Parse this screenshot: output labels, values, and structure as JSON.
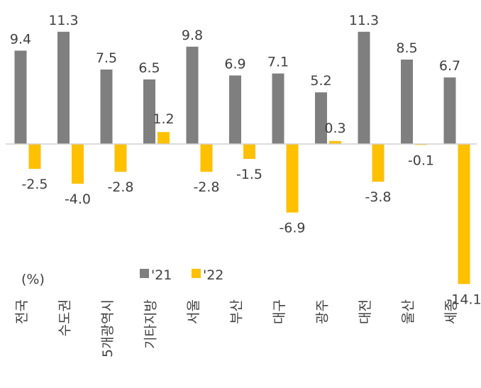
{
  "chart_data": {
    "type": "bar",
    "unit": "(%)",
    "categories": [
      "전국",
      "수도권",
      "5개광역시",
      "기타지방",
      "서울",
      "부산",
      "대구",
      "광주",
      "대전",
      "울산",
      "세종"
    ],
    "series": [
      {
        "name": "'21",
        "color": "#7f7f7f",
        "values": [
          9.4,
          11.3,
          7.5,
          6.5,
          9.8,
          6.9,
          7.1,
          5.2,
          11.3,
          8.5,
          6.7
        ]
      },
      {
        "name": "'22",
        "color": "#ffc000",
        "values": [
          -2.5,
          -4.0,
          -2.8,
          1.2,
          -2.8,
          -1.5,
          -6.9,
          0.3,
          -3.8,
          -0.1,
          -14.1
        ]
      }
    ],
    "value_labels": {
      "s21": [
        "9.4",
        "11.3",
        "7.5",
        "6.5",
        "9.8",
        "6.9",
        "7.1",
        "5.2",
        "11.3",
        "8.5",
        "6.7"
      ],
      "s22": [
        "-2.5",
        "-4.0",
        "-2.8",
        "1.2",
        "-2.8",
        "-1.5",
        "-6.9",
        "0.3",
        "-3.8",
        "-0.1",
        "-14.1"
      ]
    },
    "legend": {
      "position": "bottom-center"
    },
    "grid": false
  }
}
